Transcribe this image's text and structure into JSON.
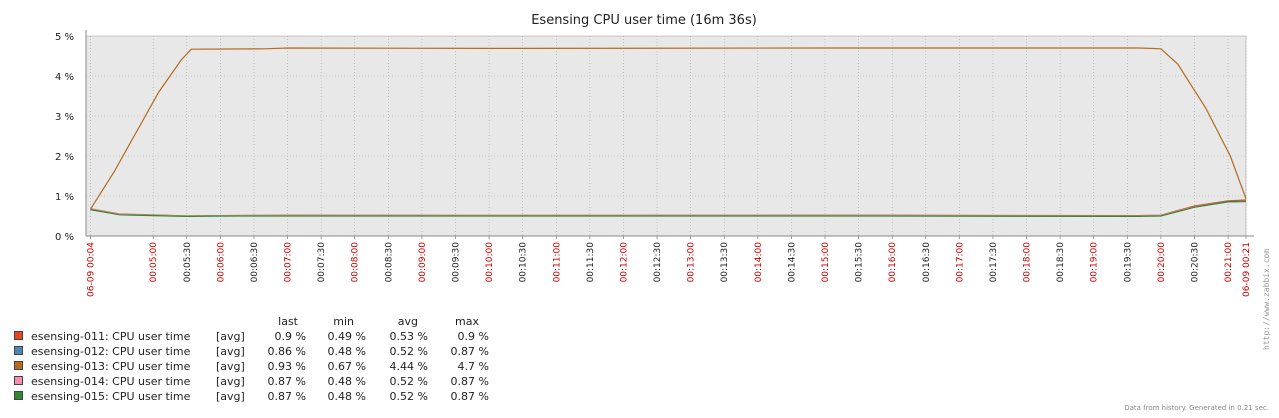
{
  "chart_data": {
    "type": "line",
    "title": "Esensing CPU user time (16m 36s)",
    "ylim": [
      0,
      5
    ],
    "y_ticks": [
      "5 %",
      "4 %",
      "3 %",
      "2 %",
      "1 %",
      "0 %"
    ],
    "y_tick_values": [
      5,
      4,
      3,
      2,
      1,
      0
    ],
    "x_range_seconds": [
      240,
      1276
    ],
    "x_ticks": [
      {
        "label": "06-09 00:04",
        "t": 244,
        "red": true
      },
      {
        "label": "00:05:00",
        "t": 300,
        "red": true
      },
      {
        "label": "00:05:30",
        "t": 330,
        "red": false
      },
      {
        "label": "00:06:00",
        "t": 360,
        "red": true
      },
      {
        "label": "00:06:30",
        "t": 390,
        "red": false
      },
      {
        "label": "00:07:00",
        "t": 420,
        "red": true
      },
      {
        "label": "00:07:30",
        "t": 450,
        "red": false
      },
      {
        "label": "00:08:00",
        "t": 480,
        "red": true
      },
      {
        "label": "00:08:30",
        "t": 510,
        "red": false
      },
      {
        "label": "00:09:00",
        "t": 540,
        "red": true
      },
      {
        "label": "00:09:30",
        "t": 570,
        "red": false
      },
      {
        "label": "00:10:00",
        "t": 600,
        "red": true
      },
      {
        "label": "00:10:30",
        "t": 630,
        "red": false
      },
      {
        "label": "00:11:00",
        "t": 660,
        "red": true
      },
      {
        "label": "00:11:30",
        "t": 690,
        "red": false
      },
      {
        "label": "00:12:00",
        "t": 720,
        "red": true
      },
      {
        "label": "00:12:30",
        "t": 750,
        "red": false
      },
      {
        "label": "00:13:00",
        "t": 780,
        "red": true
      },
      {
        "label": "00:13:30",
        "t": 810,
        "red": false
      },
      {
        "label": "00:14:00",
        "t": 840,
        "red": true
      },
      {
        "label": "00:14:30",
        "t": 870,
        "red": false
      },
      {
        "label": "00:15:00",
        "t": 900,
        "red": true
      },
      {
        "label": "00:15:30",
        "t": 930,
        "red": false
      },
      {
        "label": "00:16:00",
        "t": 960,
        "red": true
      },
      {
        "label": "00:16:30",
        "t": 990,
        "red": false
      },
      {
        "label": "00:17:00",
        "t": 1020,
        "red": true
      },
      {
        "label": "00:17:30",
        "t": 1050,
        "red": false
      },
      {
        "label": "00:18:00",
        "t": 1080,
        "red": true
      },
      {
        "label": "00:18:30",
        "t": 1110,
        "red": false
      },
      {
        "label": "00:19:00",
        "t": 1140,
        "red": true
      },
      {
        "label": "00:19:30",
        "t": 1170,
        "red": false
      },
      {
        "label": "00:20:00",
        "t": 1200,
        "red": true
      },
      {
        "label": "00:20:30",
        "t": 1230,
        "red": false
      },
      {
        "label": "00:21:00",
        "t": 1260,
        "red": true
      },
      {
        "label": "06-09 00:21",
        "t": 1276,
        "red": true
      }
    ],
    "series": [
      {
        "name": "esensing-011: CPU user time",
        "color": "#e8451f",
        "agg": "[avg]",
        "last": "0.9 %",
        "min": "0.49 %",
        "avg": "0.53 %",
        "max": "0.9 %",
        "points": [
          [
            244,
            0.68
          ],
          [
            270,
            0.55
          ],
          [
            300,
            0.53
          ],
          [
            330,
            0.5
          ],
          [
            360,
            0.51
          ],
          [
            420,
            0.52
          ],
          [
            600,
            0.52
          ],
          [
            900,
            0.52
          ],
          [
            1180,
            0.51
          ],
          [
            1200,
            0.52
          ],
          [
            1230,
            0.75
          ],
          [
            1260,
            0.88
          ],
          [
            1276,
            0.9
          ]
        ]
      },
      {
        "name": "esensing-012: CPU user time",
        "color": "#4b86b4",
        "agg": "[avg]",
        "last": "0.86 %",
        "min": "0.48 %",
        "avg": "0.52 %",
        "max": "0.87 %",
        "points": [
          [
            244,
            0.66
          ],
          [
            270,
            0.54
          ],
          [
            300,
            0.52
          ],
          [
            330,
            0.5
          ],
          [
            360,
            0.5
          ],
          [
            420,
            0.51
          ],
          [
            600,
            0.51
          ],
          [
            900,
            0.51
          ],
          [
            1180,
            0.5
          ],
          [
            1200,
            0.51
          ],
          [
            1230,
            0.72
          ],
          [
            1260,
            0.85
          ],
          [
            1276,
            0.86
          ]
        ]
      },
      {
        "name": "esensing-013: CPU user time",
        "color": "#b36b1f",
        "agg": "[avg]",
        "last": "0.93 %",
        "min": "0.67 %",
        "avg": "4.44 %",
        "max": "4.7 %",
        "points": [
          [
            244,
            0.67
          ],
          [
            265,
            1.6
          ],
          [
            285,
            2.6
          ],
          [
            305,
            3.6
          ],
          [
            325,
            4.4
          ],
          [
            334,
            4.67
          ],
          [
            400,
            4.68
          ],
          [
            420,
            4.7
          ],
          [
            600,
            4.69
          ],
          [
            900,
            4.7
          ],
          [
            1180,
            4.7
          ],
          [
            1200,
            4.68
          ],
          [
            1215,
            4.3
          ],
          [
            1240,
            3.2
          ],
          [
            1262,
            2.0
          ],
          [
            1276,
            0.93
          ]
        ]
      },
      {
        "name": "esensing-014: CPU user time",
        "color": "#f48fb1",
        "agg": "[avg]",
        "last": "0.87 %",
        "min": "0.48 %",
        "avg": "0.52 %",
        "max": "0.87 %",
        "points": [
          [
            244,
            0.67
          ],
          [
            270,
            0.54
          ],
          [
            300,
            0.52
          ],
          [
            330,
            0.5
          ],
          [
            360,
            0.51
          ],
          [
            420,
            0.51
          ],
          [
            600,
            0.52
          ],
          [
            900,
            0.51
          ],
          [
            1180,
            0.5
          ],
          [
            1200,
            0.51
          ],
          [
            1230,
            0.73
          ],
          [
            1260,
            0.86
          ],
          [
            1276,
            0.87
          ]
        ]
      },
      {
        "name": "esensing-015: CPU user time",
        "color": "#2e8b2e",
        "agg": "[avg]",
        "last": "0.87 %",
        "min": "0.48 %",
        "avg": "0.52 %",
        "max": "0.87 %",
        "points": [
          [
            244,
            0.66
          ],
          [
            270,
            0.53
          ],
          [
            300,
            0.51
          ],
          [
            330,
            0.49
          ],
          [
            360,
            0.5
          ],
          [
            420,
            0.5
          ],
          [
            600,
            0.5
          ],
          [
            900,
            0.5
          ],
          [
            1180,
            0.49
          ],
          [
            1200,
            0.5
          ],
          [
            1230,
            0.72
          ],
          [
            1260,
            0.86
          ],
          [
            1276,
            0.87
          ]
        ]
      }
    ]
  },
  "legend_headers": {
    "last": "last",
    "min": "min",
    "avg": "avg",
    "max": "max"
  },
  "footer": "Data from history. Generated in 0.21 sec.",
  "credit": "http://www.zabbix.com",
  "colors": {
    "plot_bg": "#e8e8e8",
    "grid": "#aaaaaa",
    "axis": "#888888",
    "red_label": "#cc0000"
  }
}
